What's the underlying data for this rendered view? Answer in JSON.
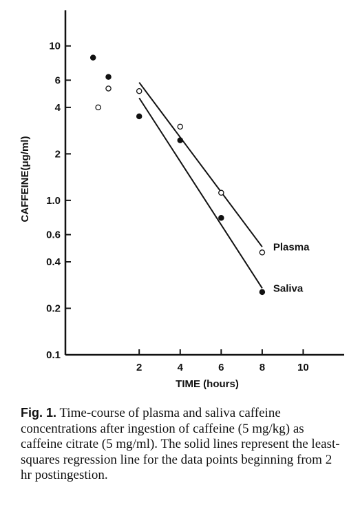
{
  "chart_data": {
    "type": "scatter",
    "y_scale": "log",
    "xlabel": "TIME (hours)",
    "ylabel": "CAFFEINE(μg/ml)",
    "xlim": [
      -1.6,
      12
    ],
    "ylim": [
      0.1,
      17
    ],
    "x_ticks": [
      2,
      4,
      6,
      8,
      10
    ],
    "x_tick_labels": [
      "2",
      "4",
      "6",
      "8",
      "10"
    ],
    "y_ticks": [
      0.1,
      0.2,
      0.4,
      0.6,
      1.0,
      2,
      4,
      6,
      10
    ],
    "y_tick_labels": [
      "0.1",
      "0.2",
      "0.4",
      "0.6",
      "1.0",
      "2",
      "4",
      "6",
      "10"
    ],
    "grid": false,
    "series": [
      {
        "name": "Plasma",
        "marker": "open-circle",
        "points": [
          {
            "x": 0.0,
            "y": 4.0
          },
          {
            "x": 0.5,
            "y": 5.3
          },
          {
            "x": 2.0,
            "y": 5.1
          },
          {
            "x": 4.0,
            "y": 3.0
          },
          {
            "x": 6.0,
            "y": 1.12
          },
          {
            "x": 8.0,
            "y": 0.46
          }
        ],
        "regression": {
          "x": [
            2,
            8
          ],
          "y": [
            5.8,
            0.5
          ]
        }
      },
      {
        "name": "Saliva",
        "marker": "filled-circle",
        "points": [
          {
            "x": -0.25,
            "y": 8.4
          },
          {
            "x": 0.5,
            "y": 6.3
          },
          {
            "x": 2.0,
            "y": 3.5
          },
          {
            "x": 4.0,
            "y": 2.45
          },
          {
            "x": 6.0,
            "y": 0.77
          },
          {
            "x": 8.0,
            "y": 0.255
          }
        ],
        "regression": {
          "x": [
            2,
            8
          ],
          "y": [
            4.6,
            0.27
          ]
        }
      }
    ]
  },
  "caption": {
    "label": "Fig. 1.",
    "text": "Time-course of plasma and saliva caffeine concentrations after ingestion of caffeine (5 mg/kg) as caffeine citrate (5 mg/ml). The solid lines represent the least-squares regression line for the data points beginning from 2 hr postingestion."
  }
}
